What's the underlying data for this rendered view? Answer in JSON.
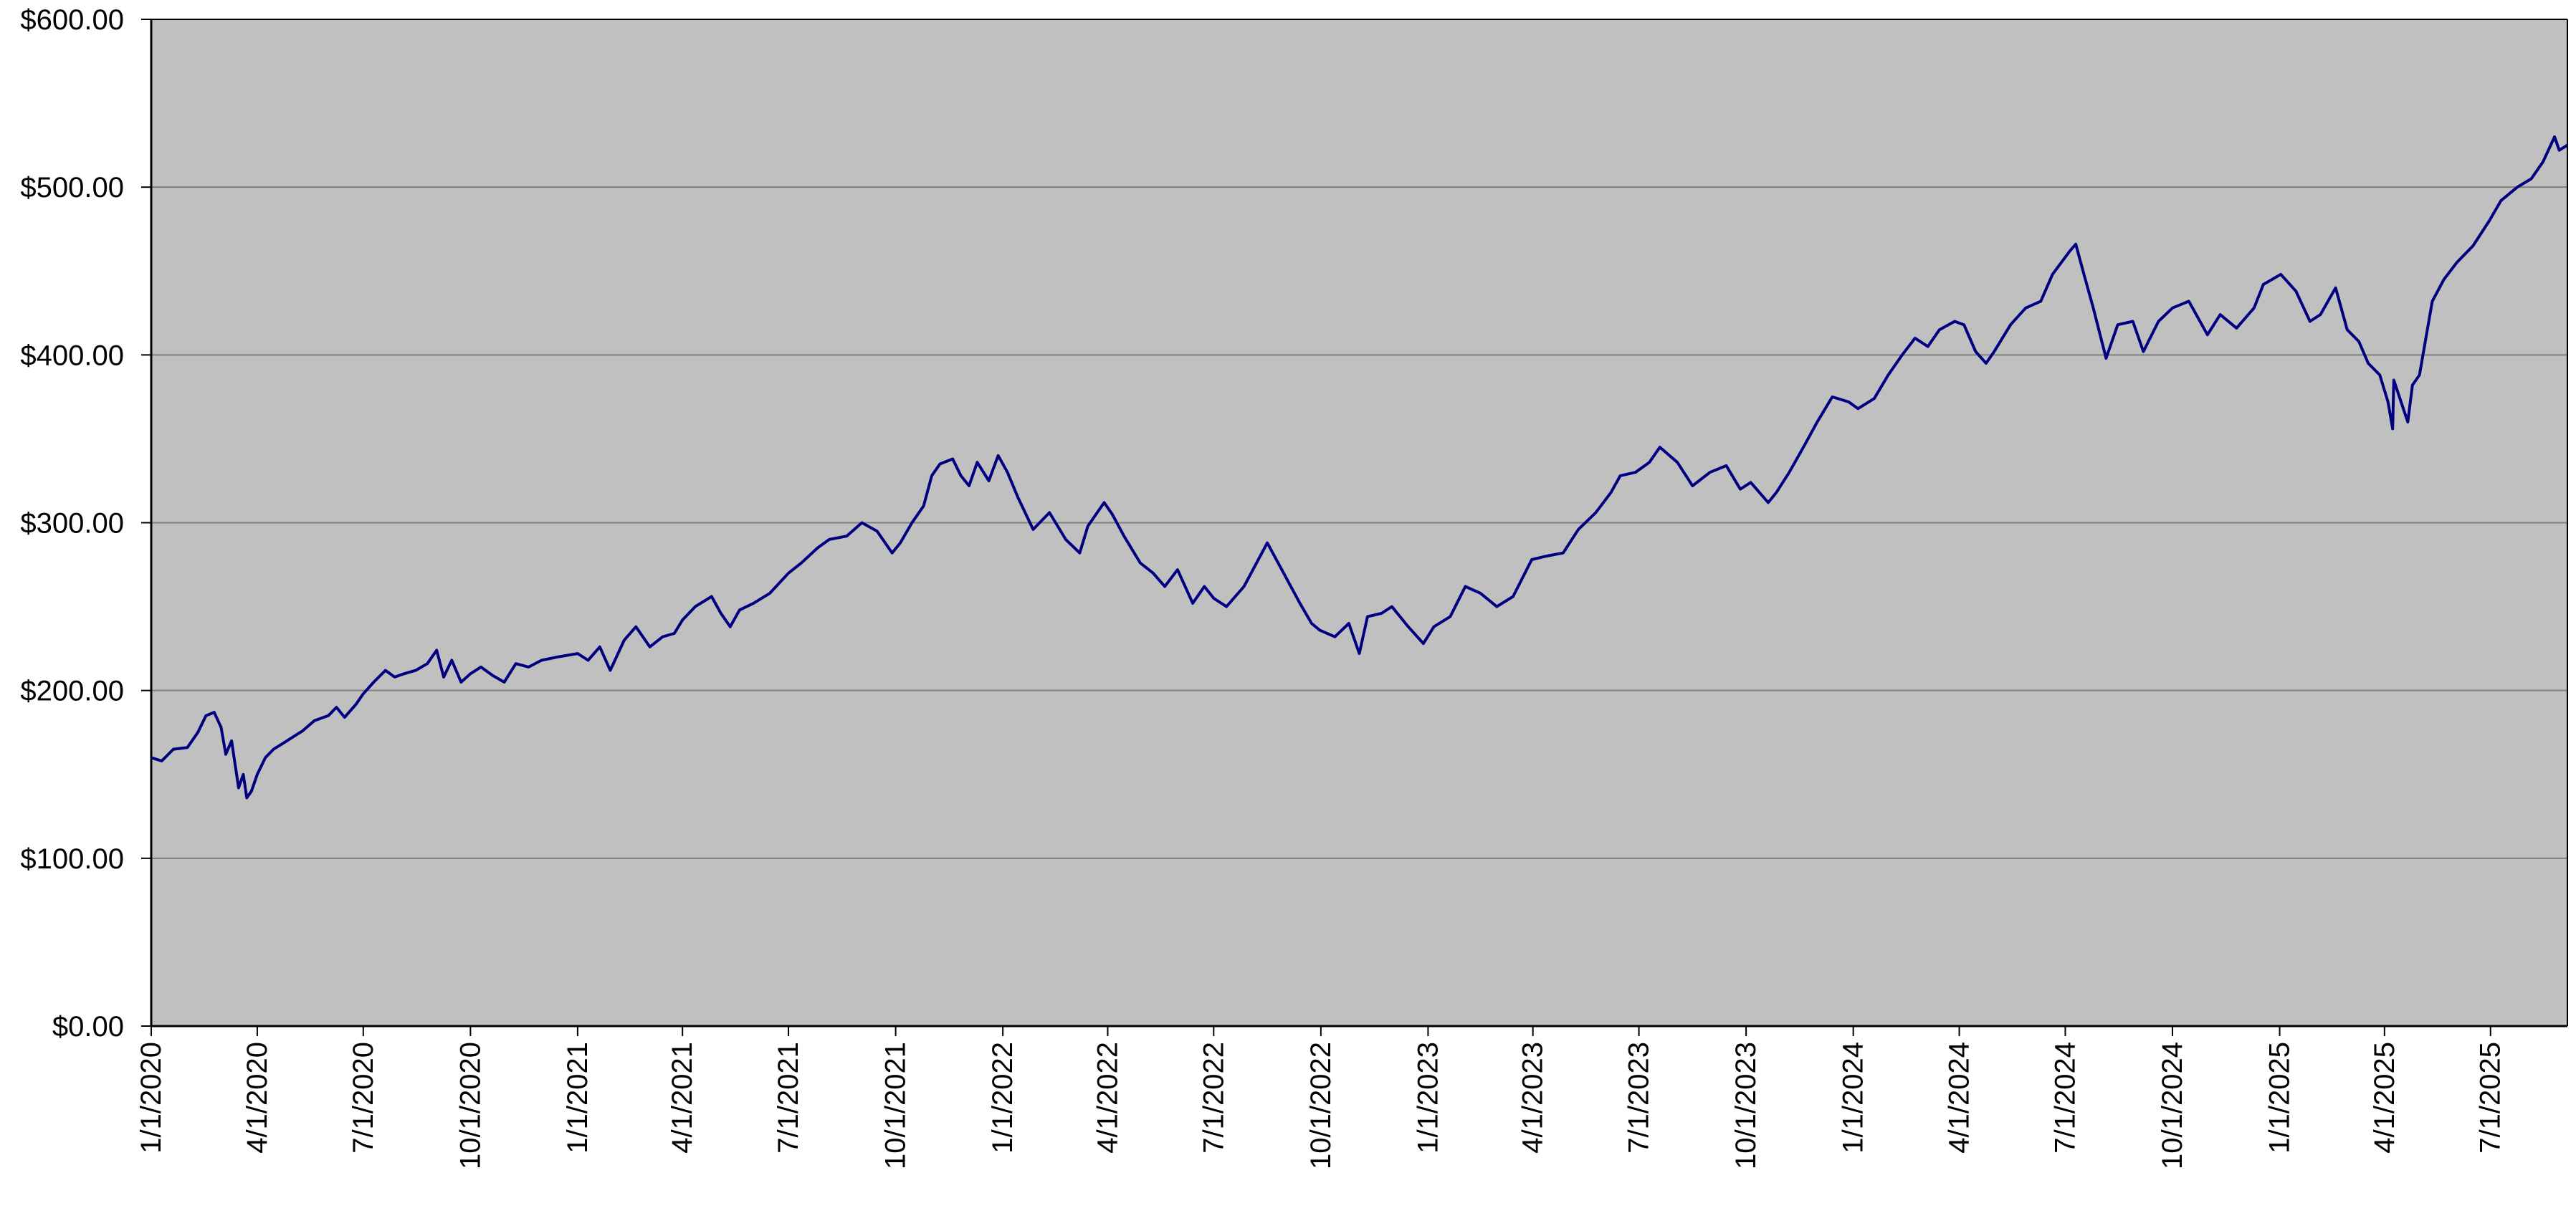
{
  "chart_data": {
    "type": "line",
    "title": "",
    "xlabel": "",
    "ylabel": "",
    "ylim": [
      0,
      600
    ],
    "yticks": [
      0,
      100,
      200,
      300,
      400,
      500,
      600
    ],
    "ytick_labels": [
      "$0.00",
      "$100.00",
      "$200.00",
      "$300.00",
      "$400.00",
      "$500.00",
      "$600.00"
    ],
    "xlim": [
      "2020-01-01",
      "2025-09-05"
    ],
    "xticks": [
      "2020-01-01",
      "2020-04-01",
      "2020-07-01",
      "2020-10-01",
      "2021-01-01",
      "2021-04-01",
      "2021-07-01",
      "2021-10-01",
      "2022-01-01",
      "2022-04-01",
      "2022-07-01",
      "2022-10-01",
      "2023-01-01",
      "2023-04-01",
      "2023-07-01",
      "2023-10-01",
      "2024-01-01",
      "2024-04-01",
      "2024-07-01",
      "2024-10-01",
      "2025-01-01",
      "2025-04-01",
      "2025-07-01"
    ],
    "xtick_labels": [
      "1/1/2020",
      "4/1/2020",
      "7/1/2020",
      "10/1/2020",
      "1/1/2021",
      "4/1/2021",
      "7/1/2021",
      "10/1/2021",
      "1/1/2022",
      "4/1/2022",
      "7/1/2022",
      "10/1/2022",
      "1/1/2023",
      "4/1/2023",
      "7/1/2023",
      "10/1/2023",
      "1/1/2024",
      "4/1/2024",
      "7/1/2024",
      "10/1/2024",
      "1/1/2025",
      "4/1/2025",
      "7/1/2025"
    ],
    "grid": true,
    "legend": "none",
    "colors": {
      "plot_bg": "#c0c0c0",
      "line": "#000080",
      "grid": "#808080",
      "axis": "#000000"
    },
    "series": [
      {
        "points": [
          [
            "2020-01-01",
            160
          ],
          [
            "2020-01-10",
            158
          ],
          [
            "2020-01-20",
            165
          ],
          [
            "2020-02-01",
            166
          ],
          [
            "2020-02-10",
            175
          ],
          [
            "2020-02-17",
            185
          ],
          [
            "2020-02-24",
            187
          ],
          [
            "2020-03-01",
            178
          ],
          [
            "2020-03-05",
            162
          ],
          [
            "2020-03-10",
            170
          ],
          [
            "2020-03-16",
            142
          ],
          [
            "2020-03-20",
            150
          ],
          [
            "2020-03-23",
            136
          ],
          [
            "2020-03-27",
            140
          ],
          [
            "2020-04-01",
            150
          ],
          [
            "2020-04-08",
            160
          ],
          [
            "2020-04-15",
            165
          ],
          [
            "2020-04-22",
            168
          ],
          [
            "2020-05-01",
            172
          ],
          [
            "2020-05-10",
            176
          ],
          [
            "2020-05-20",
            182
          ],
          [
            "2020-06-01",
            185
          ],
          [
            "2020-06-08",
            190
          ],
          [
            "2020-06-15",
            184
          ],
          [
            "2020-06-25",
            192
          ],
          [
            "2020-07-01",
            198
          ],
          [
            "2020-07-10",
            205
          ],
          [
            "2020-07-20",
            212
          ],
          [
            "2020-07-28",
            208
          ],
          [
            "2020-08-05",
            210
          ],
          [
            "2020-08-15",
            212
          ],
          [
            "2020-08-25",
            216
          ],
          [
            "2020-09-02",
            224
          ],
          [
            "2020-09-08",
            208
          ],
          [
            "2020-09-15",
            218
          ],
          [
            "2020-09-23",
            205
          ],
          [
            "2020-10-01",
            210
          ],
          [
            "2020-10-10",
            214
          ],
          [
            "2020-10-20",
            209
          ],
          [
            "2020-10-30",
            205
          ],
          [
            "2020-11-09",
            216
          ],
          [
            "2020-11-20",
            214
          ],
          [
            "2020-12-01",
            218
          ],
          [
            "2020-12-15",
            220
          ],
          [
            "2021-01-01",
            222
          ],
          [
            "2021-01-10",
            218
          ],
          [
            "2021-01-20",
            226
          ],
          [
            "2021-01-29",
            212
          ],
          [
            "2021-02-10",
            230
          ],
          [
            "2021-02-20",
            238
          ],
          [
            "2021-03-04",
            226
          ],
          [
            "2021-03-15",
            232
          ],
          [
            "2021-03-25",
            234
          ],
          [
            "2021-04-01",
            242
          ],
          [
            "2021-04-12",
            250
          ],
          [
            "2021-04-26",
            256
          ],
          [
            "2021-05-04",
            246
          ],
          [
            "2021-05-12",
            238
          ],
          [
            "2021-05-20",
            248
          ],
          [
            "2021-06-01",
            252
          ],
          [
            "2021-06-15",
            258
          ],
          [
            "2021-07-01",
            270
          ],
          [
            "2021-07-12",
            276
          ],
          [
            "2021-07-26",
            285
          ],
          [
            "2021-08-05",
            290
          ],
          [
            "2021-08-20",
            292
          ],
          [
            "2021-09-02",
            300
          ],
          [
            "2021-09-15",
            295
          ],
          [
            "2021-09-28",
            282
          ],
          [
            "2021-10-05",
            288
          ],
          [
            "2021-10-15",
            300
          ],
          [
            "2021-10-25",
            310
          ],
          [
            "2021-11-01",
            328
          ],
          [
            "2021-11-08",
            335
          ],
          [
            "2021-11-19",
            338
          ],
          [
            "2021-11-26",
            328
          ],
          [
            "2021-12-03",
            322
          ],
          [
            "2021-12-10",
            336
          ],
          [
            "2021-12-20",
            325
          ],
          [
            "2021-12-28",
            340
          ],
          [
            "2022-01-05",
            330
          ],
          [
            "2022-01-14",
            315
          ],
          [
            "2022-01-27",
            296
          ],
          [
            "2022-02-10",
            306
          ],
          [
            "2022-02-24",
            290
          ],
          [
            "2022-03-08",
            282
          ],
          [
            "2022-03-15",
            298
          ],
          [
            "2022-03-29",
            312
          ],
          [
            "2022-04-05",
            305
          ],
          [
            "2022-04-15",
            292
          ],
          [
            "2022-04-29",
            276
          ],
          [
            "2022-05-10",
            270
          ],
          [
            "2022-05-20",
            262
          ],
          [
            "2022-05-31",
            272
          ],
          [
            "2022-06-13",
            252
          ],
          [
            "2022-06-23",
            262
          ],
          [
            "2022-07-01",
            255
          ],
          [
            "2022-07-12",
            250
          ],
          [
            "2022-07-27",
            262
          ],
          [
            "2022-08-16",
            288
          ],
          [
            "2022-08-30",
            270
          ],
          [
            "2022-09-13",
            252
          ],
          [
            "2022-09-23",
            240
          ],
          [
            "2022-09-30",
            236
          ],
          [
            "2022-10-13",
            232
          ],
          [
            "2022-10-25",
            240
          ],
          [
            "2022-11-03",
            222
          ],
          [
            "2022-11-10",
            244
          ],
          [
            "2022-11-22",
            246
          ],
          [
            "2022-12-01",
            250
          ],
          [
            "2022-12-15",
            238
          ],
          [
            "2022-12-28",
            228
          ],
          [
            "2023-01-06",
            238
          ],
          [
            "2023-01-20",
            244
          ],
          [
            "2023-02-02",
            262
          ],
          [
            "2023-02-15",
            258
          ],
          [
            "2023-03-01",
            250
          ],
          [
            "2023-03-15",
            256
          ],
          [
            "2023-03-31",
            278
          ],
          [
            "2023-04-12",
            280
          ],
          [
            "2023-04-27",
            282
          ],
          [
            "2023-05-10",
            296
          ],
          [
            "2023-05-25",
            306
          ],
          [
            "2023-06-07",
            318
          ],
          [
            "2023-06-15",
            328
          ],
          [
            "2023-06-28",
            330
          ],
          [
            "2023-07-10",
            336
          ],
          [
            "2023-07-19",
            345
          ],
          [
            "2023-08-03",
            336
          ],
          [
            "2023-08-16",
            322
          ],
          [
            "2023-08-31",
            330
          ],
          [
            "2023-09-14",
            334
          ],
          [
            "2023-09-26",
            320
          ],
          [
            "2023-10-05",
            324
          ],
          [
            "2023-10-20",
            312
          ],
          [
            "2023-10-27",
            318
          ],
          [
            "2023-11-07",
            330
          ],
          [
            "2023-11-20",
            346
          ],
          [
            "2023-12-01",
            360
          ],
          [
            "2023-12-14",
            375
          ],
          [
            "2023-12-28",
            372
          ],
          [
            "2024-01-05",
            368
          ],
          [
            "2024-01-19",
            374
          ],
          [
            "2024-01-31",
            388
          ],
          [
            "2024-02-12",
            400
          ],
          [
            "2024-02-23",
            410
          ],
          [
            "2024-03-05",
            405
          ],
          [
            "2024-03-15",
            415
          ],
          [
            "2024-03-28",
            420
          ],
          [
            "2024-04-05",
            418
          ],
          [
            "2024-04-15",
            402
          ],
          [
            "2024-04-24",
            395
          ],
          [
            "2024-05-01",
            402
          ],
          [
            "2024-05-15",
            418
          ],
          [
            "2024-05-28",
            428
          ],
          [
            "2024-06-10",
            432
          ],
          [
            "2024-06-20",
            448
          ],
          [
            "2024-07-05",
            462
          ],
          [
            "2024-07-10",
            466
          ],
          [
            "2024-07-17",
            448
          ],
          [
            "2024-07-25",
            428
          ],
          [
            "2024-08-05",
            398
          ],
          [
            "2024-08-15",
            418
          ],
          [
            "2024-08-28",
            420
          ],
          [
            "2024-09-06",
            402
          ],
          [
            "2024-09-19",
            420
          ],
          [
            "2024-10-01",
            428
          ],
          [
            "2024-10-15",
            432
          ],
          [
            "2024-10-31",
            412
          ],
          [
            "2024-11-11",
            424
          ],
          [
            "2024-11-25",
            416
          ],
          [
            "2024-12-10",
            428
          ],
          [
            "2024-12-18",
            442
          ],
          [
            "2025-01-02",
            448
          ],
          [
            "2025-01-15",
            438
          ],
          [
            "2025-01-27",
            420
          ],
          [
            "2025-02-05",
            424
          ],
          [
            "2025-02-18",
            440
          ],
          [
            "2025-02-28",
            415
          ],
          [
            "2025-03-10",
            408
          ],
          [
            "2025-03-18",
            395
          ],
          [
            "2025-03-28",
            388
          ],
          [
            "2025-04-04",
            372
          ],
          [
            "2025-04-08",
            356
          ],
          [
            "2025-04-09",
            385
          ],
          [
            "2025-04-21",
            360
          ],
          [
            "2025-04-25",
            382
          ],
          [
            "2025-05-01",
            388
          ],
          [
            "2025-05-12",
            432
          ],
          [
            "2025-05-22",
            445
          ],
          [
            "2025-06-02",
            455
          ],
          [
            "2025-06-16",
            465
          ],
          [
            "2025-06-30",
            480
          ],
          [
            "2025-07-10",
            492
          ],
          [
            "2025-07-24",
            500
          ],
          [
            "2025-08-05",
            505
          ],
          [
            "2025-08-15",
            515
          ],
          [
            "2025-08-25",
            530
          ],
          [
            "2025-08-29",
            522
          ],
          [
            "2025-09-05",
            525
          ]
        ]
      }
    ]
  }
}
